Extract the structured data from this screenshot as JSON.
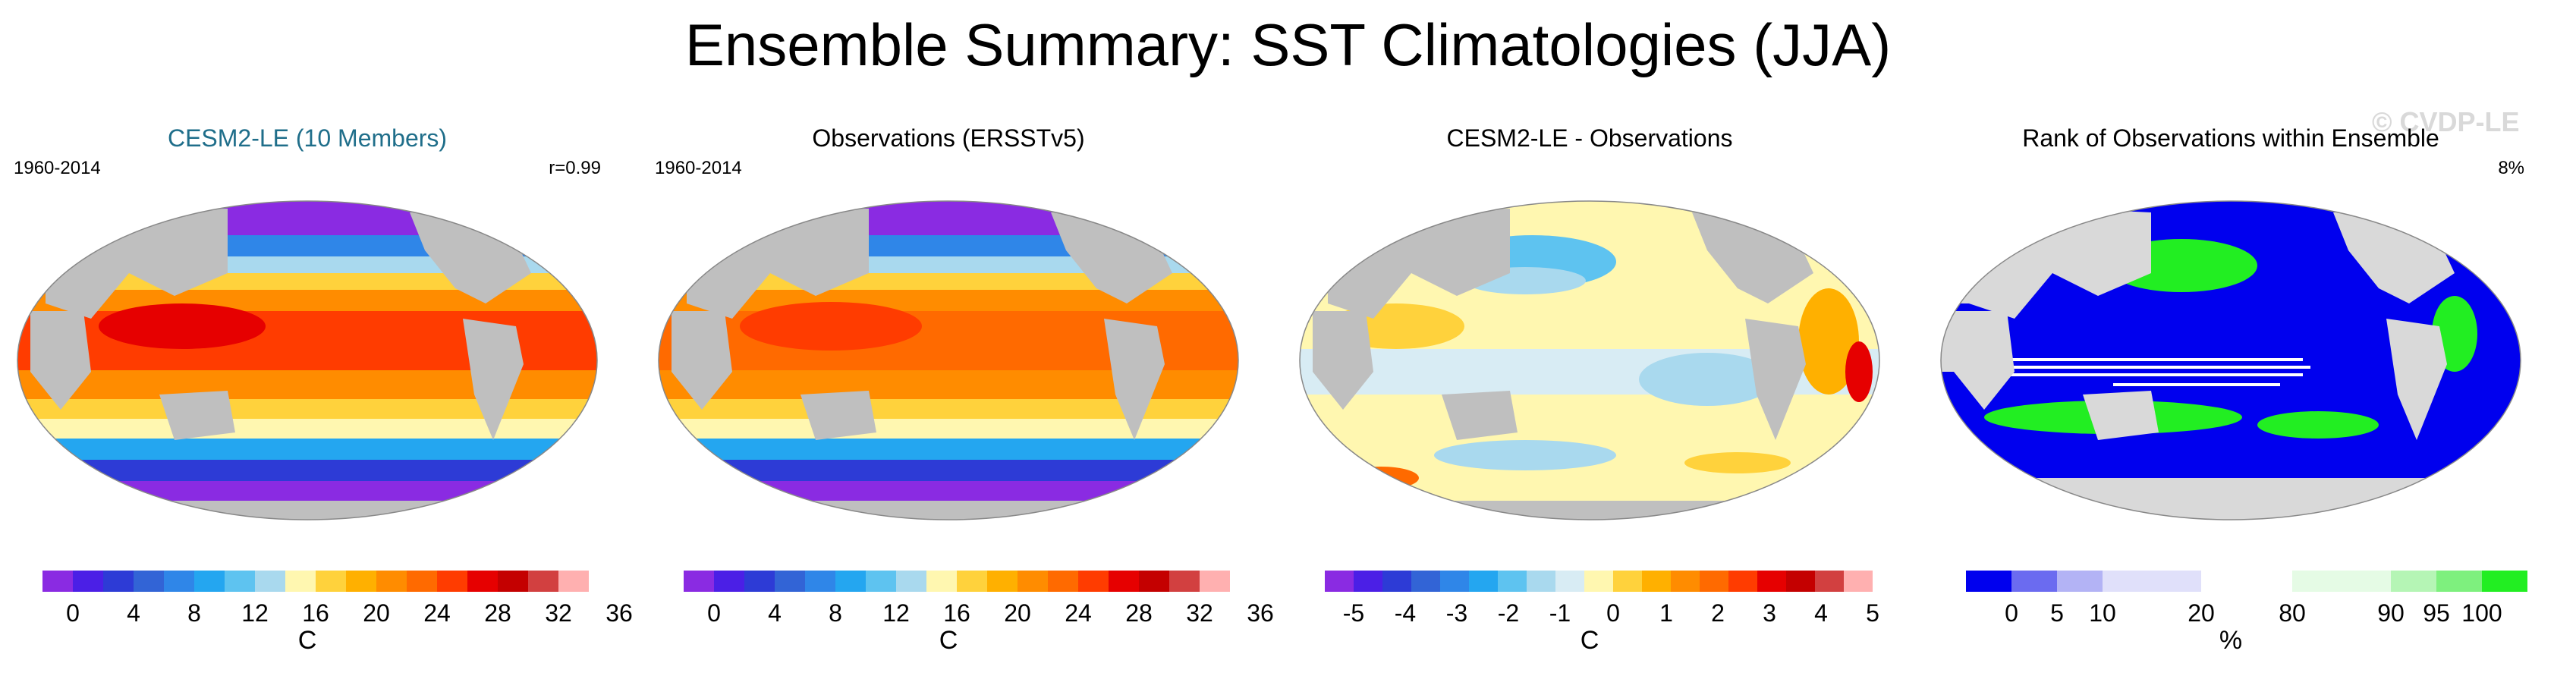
{
  "title": "Ensemble Summary: SST Climatologies (JJA)",
  "watermark": "© CVDP-LE",
  "colors": {
    "land": "#bfbfbf",
    "title_cyan": "#1f6e8a",
    "sst_scale": [
      "#8a2be2",
      "#4b1fe6",
      "#2d3bd6",
      "#3264d6",
      "#2f86e8",
      "#24a6f0",
      "#5ec3f0",
      "#a9d9ee",
      "#fff7b0",
      "#ffd23c",
      "#ffb000",
      "#ff8c00",
      "#ff6a00",
      "#ff3c00",
      "#e60000",
      "#c40000",
      "#d24040",
      "#ffb0b0"
    ],
    "diff_scale": [
      "#8a2be2",
      "#4b1fe6",
      "#2d3bd6",
      "#3264d6",
      "#2f86e8",
      "#24a6f0",
      "#5ec3f0",
      "#a9d9ee",
      "#d8ecf4",
      "#fff7b0",
      "#ffd23c",
      "#ffb000",
      "#ff8c00",
      "#ff6a00",
      "#ff3c00",
      "#e60000",
      "#c40000",
      "#d24040",
      "#ffb0b0"
    ],
    "rank_scale": [
      "#0000ee",
      "#6b6bf0",
      "#b3b3f5",
      "#e0e0fa",
      "#ffffff",
      "#e5fbe5",
      "#b5f5b5",
      "#7ef07e",
      "#22ee22"
    ]
  },
  "panels": [
    {
      "title": "CESM2-LE (10 Members)",
      "left_label": "1960-2014",
      "right_label": "r=0.99",
      "unit": "C",
      "ticks": [
        "0",
        "4",
        "8",
        "12",
        "16",
        "20",
        "24",
        "28",
        "32",
        "36"
      ]
    },
    {
      "title": "Observations (ERSSTv5)",
      "left_label": "1960-2014",
      "unit": "C",
      "ticks": [
        "0",
        "4",
        "8",
        "12",
        "16",
        "20",
        "24",
        "28",
        "32",
        "36"
      ]
    },
    {
      "title": "CESM2-LE - Observations",
      "unit": "C",
      "ticks": [
        "-5",
        "-4",
        "-3",
        "-2",
        "-1",
        "0",
        "1",
        "2",
        "3",
        "4",
        "5"
      ]
    },
    {
      "title": "Rank of Observations within Ensemble",
      "right_label": "8%",
      "unit": "%",
      "ticks": [
        "0",
        "5",
        "10",
        "20",
        "80",
        "90",
        "95",
        "100"
      ]
    }
  ]
}
